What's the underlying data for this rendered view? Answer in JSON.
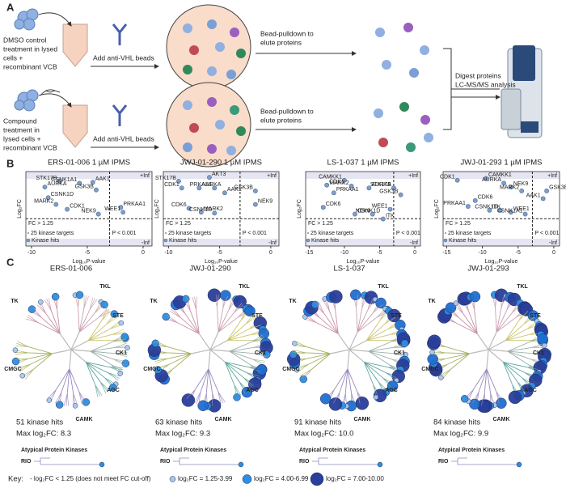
{
  "panel_labels": [
    "A",
    "B",
    "C"
  ],
  "workflow": {
    "dmso_label": [
      "DMSO control",
      "treatment in lysed",
      "cells +",
      "recombinant VCB"
    ],
    "compound_label": [
      "Compound",
      "treatment in",
      "lysed cells +",
      "recombinant VCB"
    ],
    "bead_step": [
      "Add anti-VHL beads",
      "Add anti-VHL beads"
    ],
    "pulldown_step": [
      [
        "Bead-pulldown to",
        "elute proteins"
      ],
      [
        "Bead-pulldown to",
        "elute proteins"
      ]
    ],
    "analysis_step": [
      "Digest proteins",
      "LC-MS/MS analysis"
    ]
  },
  "chart_data": [
    {
      "type": "scatter",
      "title": "ERS-01-006 1 µM IPMS",
      "x_label": "Log₁₀P-value",
      "y_label": "Log₂FC",
      "xlim": [
        -10.5,
        0.8
      ],
      "xticks": [
        -10,
        -5,
        0
      ],
      "ylim": [
        -2.5,
        5.2
      ],
      "x_cutoff": -3,
      "y_cutoff": 0.32,
      "inf_top": "+Inf",
      "inf_bottom": "-Inf",
      "fc_note": "FC > 1.25",
      "p_note": "P < 0.001",
      "target_note": "25 kinase targets",
      "series": [
        {
          "name": "Kinase hits",
          "color": "#7f9fc8",
          "labels": [
            "STK17B",
            "AURKA",
            "CSNK1A1",
            "AAK1",
            "GSK3B",
            "CSNK1D",
            "MARK2",
            "CDK1",
            "NEK9",
            "PRKAA1",
            "WEE1"
          ],
          "x": [
            -7.5,
            -8.8,
            -5.7,
            -4.5,
            -4.2,
            -8.5,
            -7.8,
            -6.8,
            -4,
            -2,
            -1.8
          ],
          "values": [
            4.2,
            3.6,
            4.0,
            4.1,
            3.3,
            2.5,
            1.8,
            1.3,
            0.8,
            1.5,
            1.0
          ]
        }
      ]
    },
    {
      "type": "scatter",
      "title": "JWJ-01-290 1 µM IPMS",
      "x_label": "Log₁₀P-value",
      "y_label": "Log₂FC",
      "xlim": [
        -10.5,
        0.8
      ],
      "xticks": [
        -10,
        -5,
        0
      ],
      "ylim": [
        -2.5,
        5.2
      ],
      "x_cutoff": -3,
      "y_cutoff": 0.32,
      "inf_top": "+Inf",
      "inf_bottom": "-Inf",
      "fc_note": "FC > 1.25",
      "p_note": "P < 0.001",
      "target_note": "25 kinase targets",
      "series": [
        {
          "name": "Kinase hits",
          "color": "#7f9fc8",
          "labels": [
            "STK17B",
            "AKT3",
            "CDK1",
            "AURKA",
            "PRKAA1",
            "AAK1",
            "GSK3B",
            "NEK9",
            "CDK6",
            "MARK2",
            "CSNK1D"
          ],
          "x": [
            -9,
            -6,
            -8.7,
            -7,
            -5.5,
            -4.5,
            -1.5,
            -1.5,
            -8,
            -6.8,
            -5.5
          ],
          "values": [
            4.2,
            4.6,
            3.5,
            3.5,
            3.5,
            3.0,
            3.2,
            1.8,
            1.4,
            1.0,
            0.9
          ]
        }
      ]
    },
    {
      "type": "scatter",
      "title": "LS-1-037 1 µM IPMS",
      "x_label": "Log₁₀P-value",
      "y_label": "Log₂FC",
      "xlim": [
        -15.5,
        0.8
      ],
      "xticks": [
        -15,
        -10,
        -5,
        0
      ],
      "ylim": [
        -2.5,
        5.2
      ],
      "x_cutoff": -3,
      "y_cutoff": 0.32,
      "inf_top": "+Inf",
      "inf_bottom": "-Inf",
      "fc_note": "FC > 1.25",
      "p_note": "P < 0.001",
      "target_note": "25 kinase targets",
      "series": [
        {
          "name": "Kinase hits",
          "color": "#7f9fc8",
          "labels": [
            "CAMKK1",
            "CDK1",
            "MARK2",
            "AURKA",
            "STK17B",
            "PRKAA1",
            "GSK3B",
            "CDK6",
            "WEE1",
            "CSNK1D",
            "NEK9",
            "ITK"
          ],
          "x": [
            -10,
            -12.5,
            -9,
            -6.5,
            -3,
            -11.5,
            -2,
            -13,
            -3.5,
            -8.5,
            -6,
            -4.5
          ],
          "values": [
            4.3,
            3.8,
            3.7,
            3.5,
            3.5,
            3.0,
            2.8,
            1.5,
            1.3,
            0.8,
            0.8,
            0.3
          ]
        }
      ]
    },
    {
      "type": "scatter",
      "title": "JWJ-01-293 1 µM IPMS",
      "x_label": "Log₁₀P-value",
      "y_label": "Log₂FC",
      "xlim": [
        -15.5,
        0.8
      ],
      "xticks": [
        -15,
        -10,
        -5,
        0
      ],
      "ylim": [
        -2.5,
        5.2
      ],
      "x_cutoff": -3,
      "y_cutoff": 0.32,
      "inf_top": "+Inf",
      "inf_bottom": "-Inf",
      "fc_note": "FC > 1.25",
      "p_note": "P < 0.001",
      "target_note": "25 kinase targets",
      "series": [
        {
          "name": "Kinase hits",
          "color": "#7f9fc8",
          "labels": [
            "CDK1",
            "CAMKK1",
            "AURKA",
            "NEK9",
            "MARK2",
            "GSK3B",
            "AAK1",
            "CDK6",
            "PRKAA1",
            "ITK",
            "CSNK1D",
            "WEE1",
            "CSNK1A1"
          ],
          "x": [
            -13.5,
            -9.5,
            -7,
            -6,
            -4.5,
            -1,
            -1.5,
            -11,
            -12,
            -9,
            -7.5,
            -6,
            -4
          ],
          "values": [
            4.3,
            4.5,
            4.0,
            3.6,
            3.2,
            3.2,
            2.4,
            2.2,
            1.6,
            1.2,
            1.2,
            1.0,
            0.8
          ]
        }
      ]
    }
  ],
  "kinome": {
    "trees": [
      {
        "title": "ERS-01-006",
        "hits": "51 kinase hits",
        "max": "Max log₂FC: 8.3"
      },
      {
        "title": "JWJ-01-290",
        "hits": "63 kinase hits",
        "max": "Max log₂FC: 9.3"
      },
      {
        "title": "LS-1-037",
        "hits": "91 kinase hits",
        "max": "Max log₂FC: 10.0"
      },
      {
        "title": "JWJ-01-293",
        "hits": "84 kinase hits",
        "max": "Max log₂FC: 9.9"
      }
    ],
    "groups": [
      "TK",
      "TKL",
      "STE",
      "CK1",
      "AGC",
      "CAMK",
      "CMGC"
    ],
    "atypical": "Atypical Protein Kinases",
    "rio": "RIO"
  },
  "key": {
    "title": "Key:",
    "items": [
      "- log₂FC < 1.25 (does not meet FC cut-off)",
      "log₂FC = 1.25-3.99",
      "log₂FC = 4.00-6.99",
      "log₂FC = 7.00-10.00"
    ]
  }
}
